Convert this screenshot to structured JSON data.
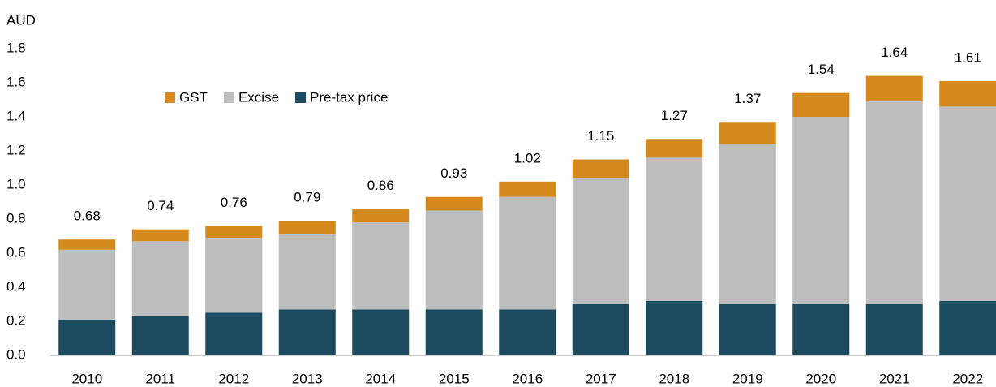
{
  "chart_data": {
    "type": "stacked-bar",
    "ylabel": "AUD",
    "categories": [
      "2010",
      "2011",
      "2012",
      "2013",
      "2014",
      "2015",
      "2016",
      "2017",
      "2018",
      "2019",
      "2020",
      "2021",
      "2022"
    ],
    "series": [
      {
        "name": "Pre-tax price",
        "color": "#1c4a5e",
        "values": [
          0.21,
          0.23,
          0.25,
          0.27,
          0.27,
          0.27,
          0.27,
          0.3,
          0.32,
          0.3,
          0.3,
          0.3,
          0.32
        ]
      },
      {
        "name": "Excise",
        "color": "#bdbdbd",
        "values": [
          0.41,
          0.44,
          0.44,
          0.44,
          0.51,
          0.58,
          0.66,
          0.74,
          0.84,
          0.94,
          1.1,
          1.19,
          1.14
        ]
      },
      {
        "name": "GST",
        "color": "#d68a1e",
        "values": [
          0.06,
          0.07,
          0.07,
          0.08,
          0.08,
          0.08,
          0.09,
          0.11,
          0.11,
          0.13,
          0.14,
          0.15,
          0.15
        ]
      }
    ],
    "totals": [
      0.68,
      0.74,
      0.76,
      0.79,
      0.86,
      0.93,
      1.02,
      1.15,
      1.27,
      1.37,
      1.54,
      1.64,
      1.61
    ],
    "ylim": [
      0,
      1.8
    ],
    "yticks": [
      {
        "value": 0,
        "label": "0.0"
      },
      0.2,
      0.4,
      0.6,
      0.8,
      {
        "value": 1,
        "label": "1.0"
      },
      1.2,
      1.4,
      1.6,
      1.8
    ],
    "grid": false,
    "legend": "top-left"
  }
}
